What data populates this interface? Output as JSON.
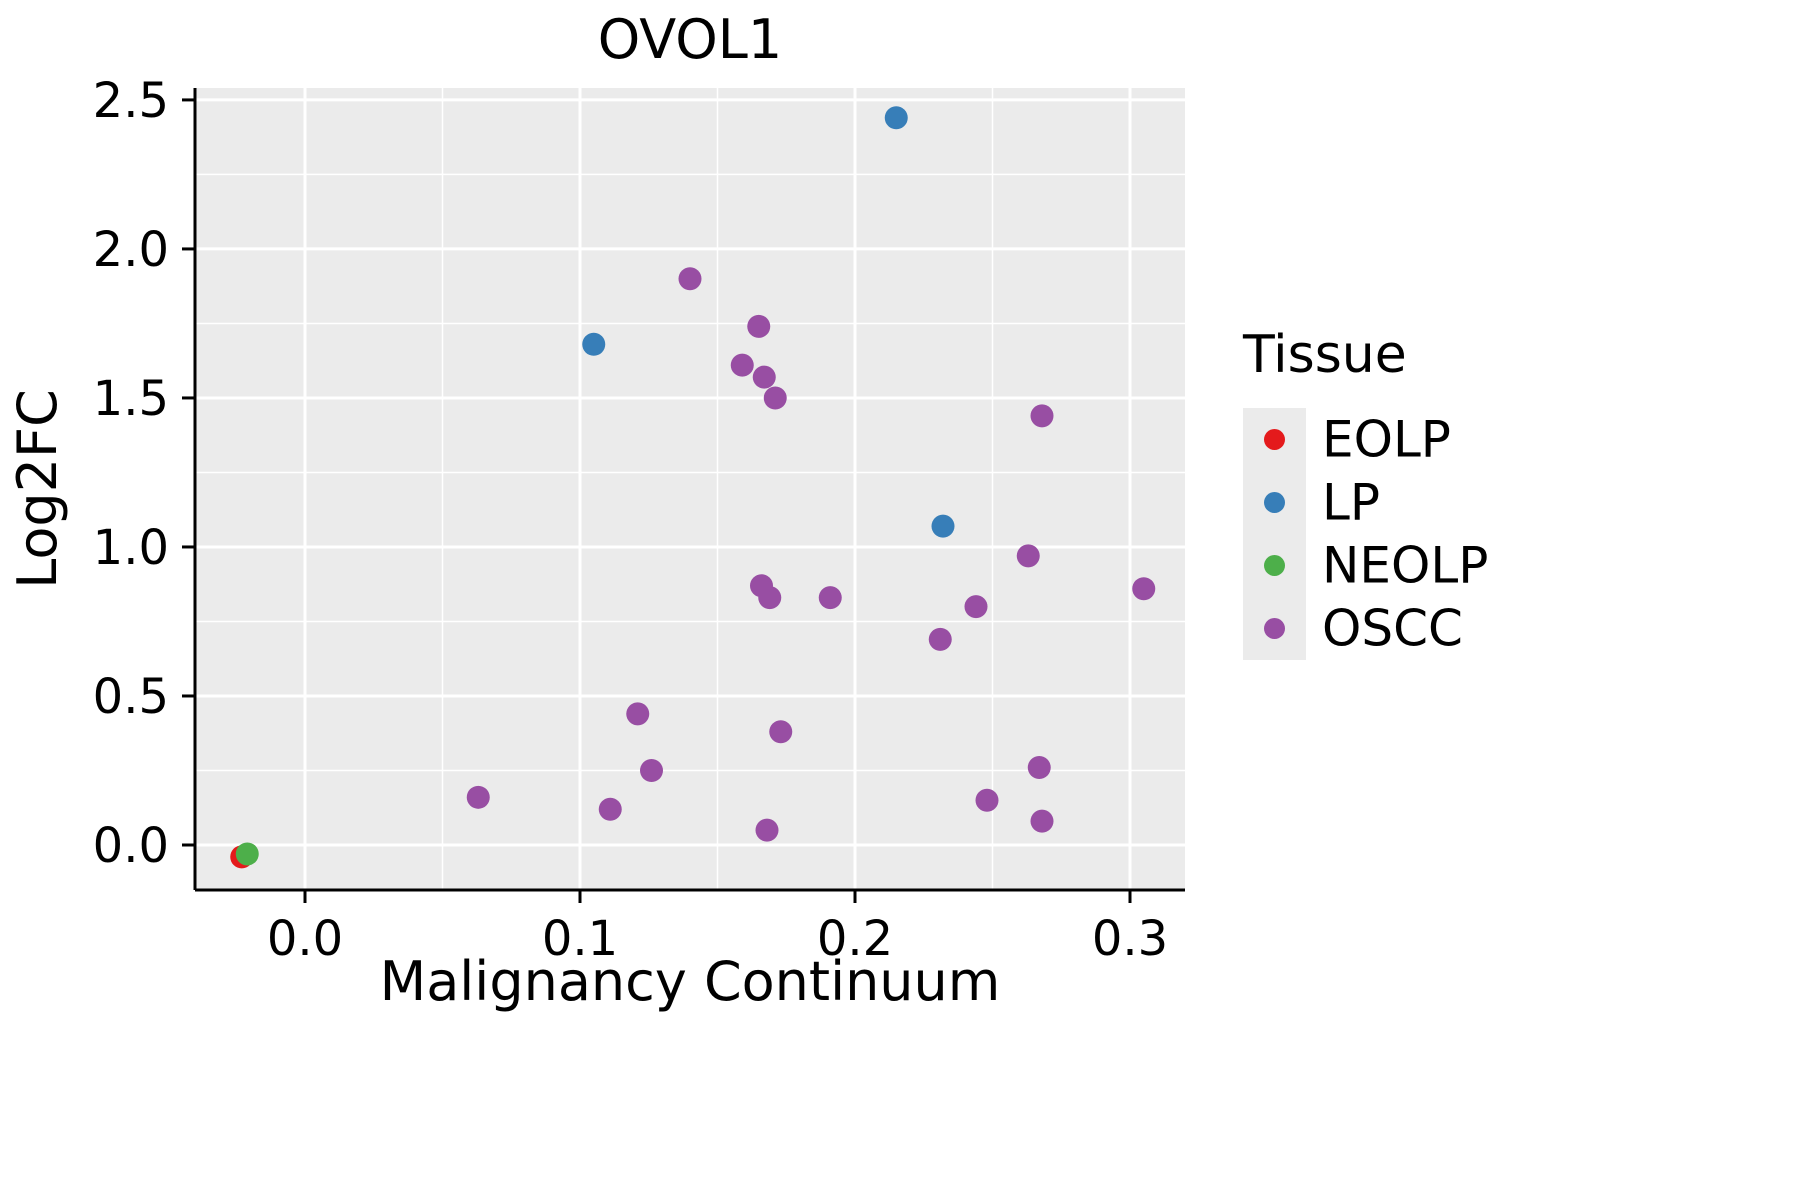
{
  "chart_data": {
    "type": "scatter",
    "title": "OVOL1",
    "xlabel": "Malignancy Continuum",
    "ylabel": "Log2FC",
    "xlim": [
      -0.04,
      0.32
    ],
    "ylim": [
      -0.151,
      2.54
    ],
    "x_ticks": [
      0.0,
      0.1,
      0.2,
      0.3
    ],
    "y_ticks": [
      0.0,
      0.5,
      1.0,
      1.5,
      2.0,
      2.5
    ],
    "grid": true,
    "panel_background": "#EBEBEB",
    "grid_color": "#FFFFFF",
    "axis_color": "#000000",
    "legend": {
      "title": "Tissue",
      "position": "right",
      "entries": [
        {
          "name": "EOLP",
          "color": "#E41A1C"
        },
        {
          "name": "LP",
          "color": "#377EB8"
        },
        {
          "name": "NEOLP",
          "color": "#4DAF4A"
        },
        {
          "name": "OSCC",
          "color": "#984EA3"
        }
      ]
    },
    "series": [
      {
        "name": "EOLP",
        "color": "#E41A1C",
        "points": [
          [
            -0.023,
            -0.04
          ]
        ]
      },
      {
        "name": "LP",
        "color": "#377EB8",
        "points": [
          [
            0.105,
            1.68
          ],
          [
            0.215,
            2.44
          ],
          [
            0.232,
            1.07
          ]
        ]
      },
      {
        "name": "NEOLP",
        "color": "#4DAF4A",
        "points": [
          [
            -0.021,
            -0.03
          ]
        ]
      },
      {
        "name": "OSCC",
        "color": "#984EA3",
        "points": [
          [
            0.14,
            1.9
          ],
          [
            0.165,
            1.74
          ],
          [
            0.159,
            1.61
          ],
          [
            0.167,
            1.57
          ],
          [
            0.171,
            1.5
          ],
          [
            0.268,
            1.44
          ],
          [
            0.263,
            0.97
          ],
          [
            0.305,
            0.86
          ],
          [
            0.166,
            0.87
          ],
          [
            0.169,
            0.83
          ],
          [
            0.191,
            0.83
          ],
          [
            0.244,
            0.8
          ],
          [
            0.231,
            0.69
          ],
          [
            0.121,
            0.44
          ],
          [
            0.173,
            0.38
          ],
          [
            0.126,
            0.25
          ],
          [
            0.267,
            0.26
          ],
          [
            0.063,
            0.16
          ],
          [
            0.248,
            0.15
          ],
          [
            0.111,
            0.12
          ],
          [
            0.268,
            0.08
          ],
          [
            0.168,
            0.05
          ]
        ]
      }
    ]
  }
}
